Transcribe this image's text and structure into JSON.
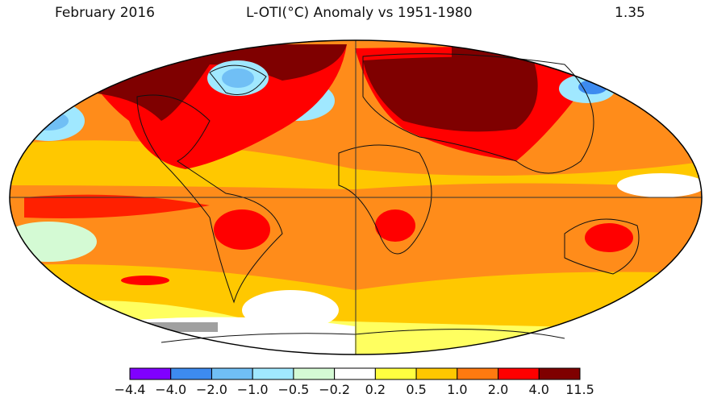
{
  "header": {
    "date": "February 2016",
    "title": "L-OTI(°C) Anomaly vs 1951-1980",
    "global_mean": "1.35"
  },
  "colorbar": {
    "ticks": [
      "−4.4",
      "−4.0",
      "−2.0",
      "−1.0",
      "−0.5",
      "−0.2",
      "0.2",
      "0.5",
      "1.0",
      "2.0",
      "4.0",
      "11.5"
    ],
    "colors": [
      "#8000ff",
      "#3d8bf0",
      "#70bff5",
      "#a0e8ff",
      "#d4fad4",
      "#ffffff",
      "#ffff40",
      "#ffc800",
      "#ff7a10",
      "#ff0000",
      "#7f0000"
    ]
  },
  "map": {
    "projection": "Robinson",
    "missing_color": "#a0a0a0"
  }
}
